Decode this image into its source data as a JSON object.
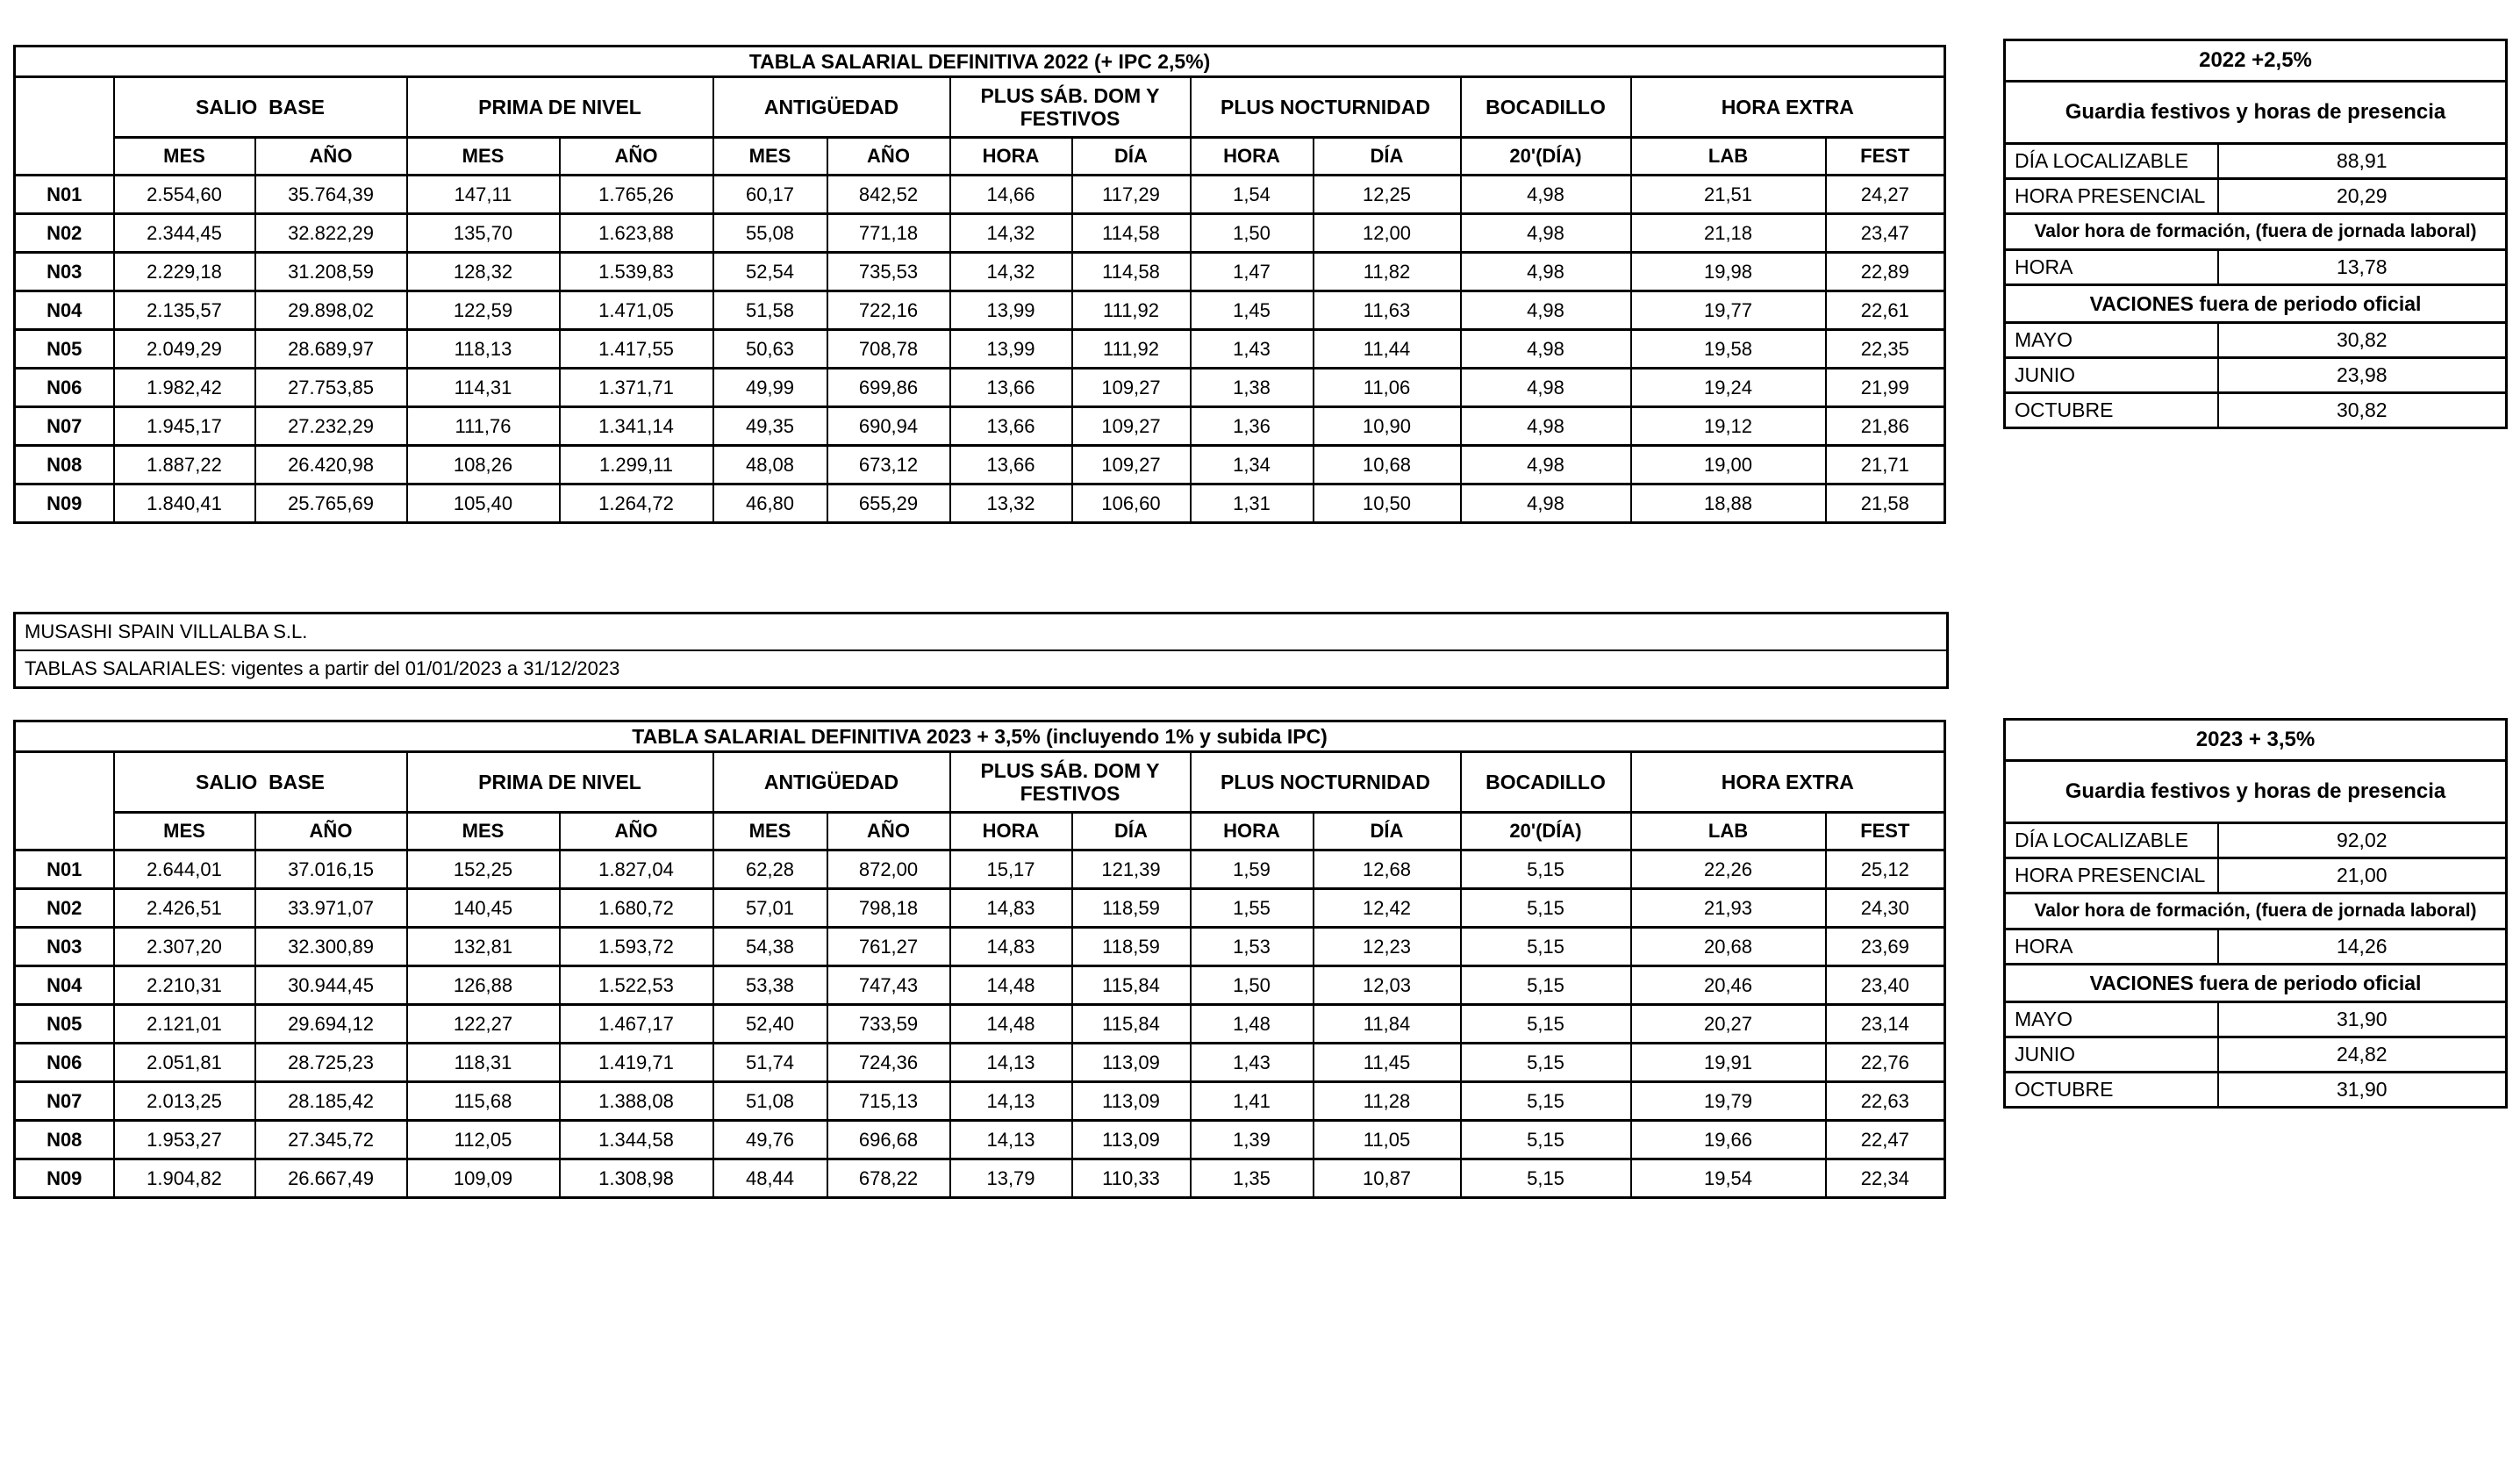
{
  "columns": {
    "groups": [
      {
        "label": "SALIO  BASE",
        "sub": [
          "MES",
          "AÑO"
        ]
      },
      {
        "label": "PRIMA DE NIVEL",
        "sub": [
          "MES",
          "AÑO"
        ]
      },
      {
        "label": "ANTIGÜEDAD",
        "sub": [
          "MES",
          "AÑO"
        ]
      },
      {
        "label": "PLUS SÁB. DOM Y FESTIVOS",
        "sub": [
          "HORA",
          "DÍA"
        ]
      },
      {
        "label": "PLUS NOCTURNIDAD",
        "sub": [
          "HORA",
          "DÍA"
        ]
      },
      {
        "label": "BOCADILLO",
        "sub": [
          "20'(DÍA)"
        ]
      },
      {
        "label": "HORA EXTRA",
        "sub": [
          "LAB",
          "FEST"
        ]
      }
    ]
  },
  "table_2022": {
    "title": "TABLA SALARIAL DEFINITIVA 2022 (+ IPC 2,5%)",
    "rows": [
      [
        "N01",
        "2.554,60",
        "35.764,39",
        "147,11",
        "1.765,26",
        "60,17",
        "842,52",
        "14,66",
        "117,29",
        "1,54",
        "12,25",
        "4,98",
        "21,51",
        "24,27"
      ],
      [
        "N02",
        "2.344,45",
        "32.822,29",
        "135,70",
        "1.623,88",
        "55,08",
        "771,18",
        "14,32",
        "114,58",
        "1,50",
        "12,00",
        "4,98",
        "21,18",
        "23,47"
      ],
      [
        "N03",
        "2.229,18",
        "31.208,59",
        "128,32",
        "1.539,83",
        "52,54",
        "735,53",
        "14,32",
        "114,58",
        "1,47",
        "11,82",
        "4,98",
        "19,98",
        "22,89"
      ],
      [
        "N04",
        "2.135,57",
        "29.898,02",
        "122,59",
        "1.471,05",
        "51,58",
        "722,16",
        "13,99",
        "111,92",
        "1,45",
        "11,63",
        "4,98",
        "19,77",
        "22,61"
      ],
      [
        "N05",
        "2.049,29",
        "28.689,97",
        "118,13",
        "1.417,55",
        "50,63",
        "708,78",
        "13,99",
        "111,92",
        "1,43",
        "11,44",
        "4,98",
        "19,58",
        "22,35"
      ],
      [
        "N06",
        "1.982,42",
        "27.753,85",
        "114,31",
        "1.371,71",
        "49,99",
        "699,86",
        "13,66",
        "109,27",
        "1,38",
        "11,06",
        "4,98",
        "19,24",
        "21,99"
      ],
      [
        "N07",
        "1.945,17",
        "27.232,29",
        "111,76",
        "1.341,14",
        "49,35",
        "690,94",
        "13,66",
        "109,27",
        "1,36",
        "10,90",
        "4,98",
        "19,12",
        "21,86"
      ],
      [
        "N08",
        "1.887,22",
        "26.420,98",
        "108,26",
        "1.299,11",
        "48,08",
        "673,12",
        "13,66",
        "109,27",
        "1,34",
        "10,68",
        "4,98",
        "19,00",
        "21,71"
      ],
      [
        "N09",
        "1.840,41",
        "25.765,69",
        "105,40",
        "1.264,72",
        "46,80",
        "655,29",
        "13,32",
        "106,60",
        "1,31",
        "10,50",
        "4,98",
        "18,88",
        "21,58"
      ]
    ]
  },
  "info_box": {
    "company": "MUSASHI SPAIN VILLALBA S.L.",
    "validity": "TABLAS SALARIALES: vigentes a partir del 01/01/2023 a 31/12/2023"
  },
  "table_2023": {
    "title": "TABLA SALARIAL DEFINITIVA 2023 + 3,5% (incluyendo 1% y subida IPC)",
    "rows": [
      [
        "N01",
        "2.644,01",
        "37.016,15",
        "152,25",
        "1.827,04",
        "62,28",
        "872,00",
        "15,17",
        "121,39",
        "1,59",
        "12,68",
        "5,15",
        "22,26",
        "25,12"
      ],
      [
        "N02",
        "2.426,51",
        "33.971,07",
        "140,45",
        "1.680,72",
        "57,01",
        "798,18",
        "14,83",
        "118,59",
        "1,55",
        "12,42",
        "5,15",
        "21,93",
        "24,30"
      ],
      [
        "N03",
        "2.307,20",
        "32.300,89",
        "132,81",
        "1.593,72",
        "54,38",
        "761,27",
        "14,83",
        "118,59",
        "1,53",
        "12,23",
        "5,15",
        "20,68",
        "23,69"
      ],
      [
        "N04",
        "2.210,31",
        "30.944,45",
        "126,88",
        "1.522,53",
        "53,38",
        "747,43",
        "14,48",
        "115,84",
        "1,50",
        "12,03",
        "5,15",
        "20,46",
        "23,40"
      ],
      [
        "N05",
        "2.121,01",
        "29.694,12",
        "122,27",
        "1.467,17",
        "52,40",
        "733,59",
        "14,48",
        "115,84",
        "1,48",
        "11,84",
        "5,15",
        "20,27",
        "23,14"
      ],
      [
        "N06",
        "2.051,81",
        "28.725,23",
        "118,31",
        "1.419,71",
        "51,74",
        "724,36",
        "14,13",
        "113,09",
        "1,43",
        "11,45",
        "5,15",
        "19,91",
        "22,76"
      ],
      [
        "N07",
        "2.013,25",
        "28.185,42",
        "115,68",
        "1.388,08",
        "51,08",
        "715,13",
        "14,13",
        "113,09",
        "1,41",
        "11,28",
        "5,15",
        "19,79",
        "22,63"
      ],
      [
        "N08",
        "1.953,27",
        "27.345,72",
        "112,05",
        "1.344,58",
        "49,76",
        "696,68",
        "14,13",
        "113,09",
        "1,39",
        "11,05",
        "5,15",
        "19,66",
        "22,47"
      ],
      [
        "N09",
        "1.904,82",
        "26.667,49",
        "109,09",
        "1.308,98",
        "48,44",
        "678,22",
        "13,79",
        "110,33",
        "1,35",
        "10,87",
        "5,15",
        "19,54",
        "22,34"
      ]
    ]
  },
  "panel_2022": {
    "title": "2022 +2,5%",
    "section_guardia": "Guardia festivos y horas de presencia",
    "guardia_rows": [
      {
        "label": "DÍA LOCALIZABLE",
        "value": "88,91"
      },
      {
        "label": "HORA PRESENCIAL",
        "value": "20,29"
      }
    ],
    "section_formacion": "Valor hora de formación, (fuera de jornada laboral)",
    "formacion_rows": [
      {
        "label": "HORA",
        "value": "13,78"
      }
    ],
    "section_vacaciones": "VACIONES fuera de periodo oficial",
    "vacaciones_rows": [
      {
        "label": "MAYO",
        "value": "30,82"
      },
      {
        "label": "JUNIO",
        "value": "23,98"
      },
      {
        "label": "OCTUBRE",
        "value": "30,82"
      }
    ]
  },
  "panel_2023": {
    "title": "2023 + 3,5%",
    "section_guardia": "Guardia festivos y horas de presencia",
    "guardia_rows": [
      {
        "label": "DÍA LOCALIZABLE",
        "value": "92,02"
      },
      {
        "label": "HORA PRESENCIAL",
        "value": "21,00"
      }
    ],
    "section_formacion": "Valor hora de formación, (fuera de jornada laboral)",
    "formacion_rows": [
      {
        "label": "HORA",
        "value": "14,26"
      }
    ],
    "section_vacaciones": "VACIONES fuera de periodo oficial",
    "vacaciones_rows": [
      {
        "label": "MAYO",
        "value": "31,90"
      },
      {
        "label": "JUNIO",
        "value": "24,82"
      },
      {
        "label": "OCTUBRE",
        "value": "31,90"
      }
    ]
  }
}
